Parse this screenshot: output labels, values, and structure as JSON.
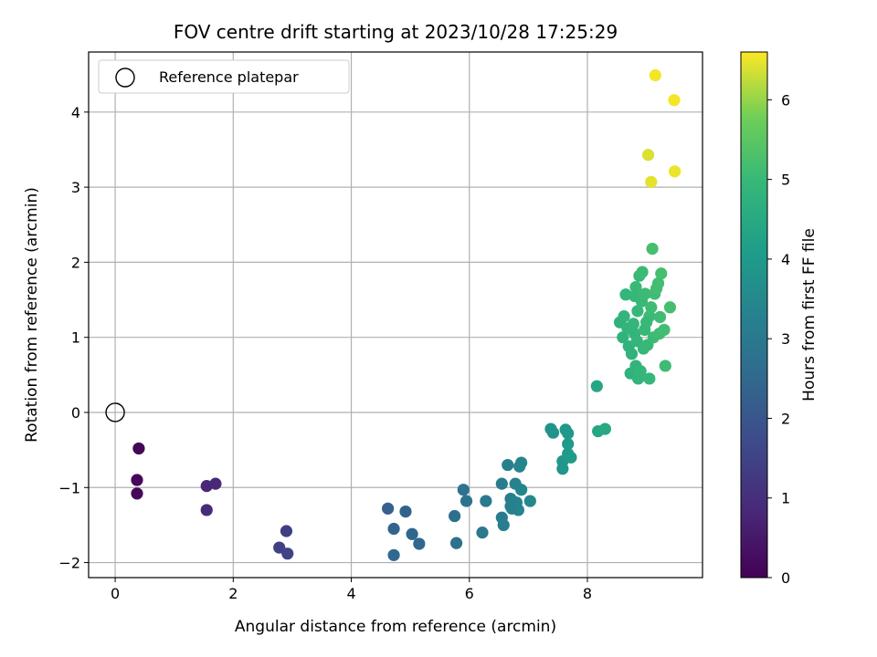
{
  "chart_data": {
    "type": "scatter",
    "title": "FOV centre drift starting at 2023/10/28 17:25:29",
    "xlabel": "Angular distance from reference (arcmin)",
    "ylabel": "Rotation from reference (arcmin)",
    "xlim": [
      -0.45,
      9.95
    ],
    "ylim": [
      -2.2,
      4.8
    ],
    "xticks": [
      0,
      2,
      4,
      6,
      8
    ],
    "yticks": [
      -2,
      -1,
      0,
      1,
      2,
      3,
      4
    ],
    "xtick_labels": [
      "0",
      "2",
      "4",
      "6",
      "8"
    ],
    "ytick_labels": [
      "−2",
      "−1",
      "0",
      "1",
      "2",
      "3",
      "4"
    ],
    "grid": true,
    "legend": {
      "position": "top-left",
      "entries": [
        {
          "label": "Reference platepar",
          "marker": "open-circle"
        }
      ]
    },
    "reference_point": {
      "x": 0,
      "y": 0
    },
    "colorbar": {
      "label": "Hours from first FF file",
      "colormap": "viridis",
      "range": [
        0,
        6.6
      ],
      "ticks": [
        0,
        1,
        2,
        3,
        4,
        5,
        6
      ],
      "tick_labels": [
        "0",
        "1",
        "2",
        "3",
        "4",
        "5",
        "6"
      ]
    },
    "points": [
      {
        "x": 0.4,
        "y": -0.48,
        "c": 0.1
      },
      {
        "x": 0.37,
        "y": -0.9,
        "c": 0.15
      },
      {
        "x": 0.37,
        "y": -1.08,
        "c": 0.18
      },
      {
        "x": 1.55,
        "y": -0.98,
        "c": 0.8
      },
      {
        "x": 1.7,
        "y": -0.95,
        "c": 0.85
      },
      {
        "x": 1.55,
        "y": -1.3,
        "c": 0.9
      },
      {
        "x": 2.9,
        "y": -1.58,
        "c": 1.4
      },
      {
        "x": 2.78,
        "y": -1.8,
        "c": 1.45
      },
      {
        "x": 2.92,
        "y": -1.88,
        "c": 1.5
      },
      {
        "x": 4.62,
        "y": -1.28,
        "c": 2.3
      },
      {
        "x": 4.92,
        "y": -1.32,
        "c": 2.35
      },
      {
        "x": 4.72,
        "y": -1.55,
        "c": 2.4
      },
      {
        "x": 5.03,
        "y": -1.62,
        "c": 2.45
      },
      {
        "x": 5.15,
        "y": -1.75,
        "c": 2.45
      },
      {
        "x": 4.72,
        "y": -1.9,
        "c": 2.5
      },
      {
        "x": 5.75,
        "y": -1.38,
        "c": 2.7
      },
      {
        "x": 5.78,
        "y": -1.74,
        "c": 2.75
      },
      {
        "x": 5.9,
        "y": -1.03,
        "c": 2.8
      },
      {
        "x": 5.95,
        "y": -1.18,
        "c": 2.85
      },
      {
        "x": 6.22,
        "y": -1.6,
        "c": 3.0
      },
      {
        "x": 6.28,
        "y": -1.18,
        "c": 3.0
      },
      {
        "x": 6.55,
        "y": -0.95,
        "c": 3.1
      },
      {
        "x": 6.55,
        "y": -1.4,
        "c": 3.1
      },
      {
        "x": 6.58,
        "y": -1.5,
        "c": 3.15
      },
      {
        "x": 6.65,
        "y": -0.7,
        "c": 3.2
      },
      {
        "x": 6.7,
        "y": -1.15,
        "c": 3.2
      },
      {
        "x": 6.72,
        "y": -1.28,
        "c": 3.25
      },
      {
        "x": 6.78,
        "y": -0.95,
        "c": 3.3
      },
      {
        "x": 6.8,
        "y": -1.2,
        "c": 3.3
      },
      {
        "x": 6.83,
        "y": -1.3,
        "c": 3.35
      },
      {
        "x": 6.85,
        "y": -0.72,
        "c": 3.35
      },
      {
        "x": 6.88,
        "y": -0.67,
        "c": 3.4
      },
      {
        "x": 6.88,
        "y": -1.03,
        "c": 3.4
      },
      {
        "x": 7.03,
        "y": -1.18,
        "c": 3.5
      },
      {
        "x": 6.7,
        "y": -1.25,
        "c": 3.25
      },
      {
        "x": 7.38,
        "y": -0.22,
        "c": 3.8
      },
      {
        "x": 7.42,
        "y": -0.27,
        "c": 3.8
      },
      {
        "x": 7.58,
        "y": -0.65,
        "c": 3.9
      },
      {
        "x": 7.58,
        "y": -0.75,
        "c": 3.9
      },
      {
        "x": 7.63,
        "y": -0.23,
        "c": 3.95
      },
      {
        "x": 7.67,
        "y": -0.28,
        "c": 3.95
      },
      {
        "x": 7.67,
        "y": -0.42,
        "c": 4.0
      },
      {
        "x": 7.67,
        "y": -0.55,
        "c": 4.0
      },
      {
        "x": 7.72,
        "y": -0.6,
        "c": 4.05
      },
      {
        "x": 8.16,
        "y": 0.35,
        "c": 4.4
      },
      {
        "x": 8.18,
        "y": -0.25,
        "c": 4.4
      },
      {
        "x": 8.3,
        "y": -0.22,
        "c": 4.45
      },
      {
        "x": 8.55,
        "y": 1.2,
        "c": 4.8
      },
      {
        "x": 8.62,
        "y": 1.28,
        "c": 4.85
      },
      {
        "x": 8.65,
        "y": 1.57,
        "c": 4.9
      },
      {
        "x": 8.7,
        "y": 0.88,
        "c": 4.8
      },
      {
        "x": 8.73,
        "y": 0.52,
        "c": 4.75
      },
      {
        "x": 8.75,
        "y": 0.78,
        "c": 4.8
      },
      {
        "x": 8.78,
        "y": 1.18,
        "c": 4.9
      },
      {
        "x": 8.8,
        "y": 1.55,
        "c": 4.95
      },
      {
        "x": 8.8,
        "y": 1.05,
        "c": 4.85
      },
      {
        "x": 8.82,
        "y": 0.62,
        "c": 4.85
      },
      {
        "x": 8.82,
        "y": 1.67,
        "c": 5.0
      },
      {
        "x": 8.84,
        "y": 0.95,
        "c": 4.9
      },
      {
        "x": 8.85,
        "y": 1.35,
        "c": 4.95
      },
      {
        "x": 8.86,
        "y": 0.45,
        "c": 4.85
      },
      {
        "x": 8.88,
        "y": 1.82,
        "c": 5.0
      },
      {
        "x": 8.9,
        "y": 0.55,
        "c": 4.9
      },
      {
        "x": 8.92,
        "y": 1.48,
        "c": 5.0
      },
      {
        "x": 8.93,
        "y": 1.87,
        "c": 5.05
      },
      {
        "x": 8.95,
        "y": 0.85,
        "c": 4.95
      },
      {
        "x": 8.97,
        "y": 1.1,
        "c": 5.0
      },
      {
        "x": 8.98,
        "y": 1.58,
        "c": 5.05
      },
      {
        "x": 9.02,
        "y": 0.9,
        "c": 5.0
      },
      {
        "x": 9.05,
        "y": 1.28,
        "c": 5.05
      },
      {
        "x": 9.05,
        "y": 0.45,
        "c": 4.95
      },
      {
        "x": 9.08,
        "y": 1.4,
        "c": 5.1
      },
      {
        "x": 9.1,
        "y": 2.18,
        "c": 5.2
      },
      {
        "x": 9.12,
        "y": 1.0,
        "c": 5.05
      },
      {
        "x": 9.14,
        "y": 1.58,
        "c": 5.1
      },
      {
        "x": 9.17,
        "y": 1.65,
        "c": 5.15
      },
      {
        "x": 9.2,
        "y": 1.72,
        "c": 5.15
      },
      {
        "x": 9.22,
        "y": 1.05,
        "c": 5.1
      },
      {
        "x": 9.23,
        "y": 1.27,
        "c": 5.1
      },
      {
        "x": 9.25,
        "y": 1.85,
        "c": 5.2
      },
      {
        "x": 9.3,
        "y": 1.1,
        "c": 5.15
      },
      {
        "x": 9.32,
        "y": 0.62,
        "c": 5.1
      },
      {
        "x": 9.4,
        "y": 1.4,
        "c": 5.2
      },
      {
        "x": 8.6,
        "y": 1.0,
        "c": 4.8
      },
      {
        "x": 8.68,
        "y": 1.12,
        "c": 4.85
      },
      {
        "x": 9.0,
        "y": 1.2,
        "c": 5.0
      },
      {
        "x": 9.03,
        "y": 3.43,
        "c": 6.4
      },
      {
        "x": 9.08,
        "y": 3.07,
        "c": 6.45
      },
      {
        "x": 9.15,
        "y": 4.49,
        "c": 6.55
      },
      {
        "x": 9.47,
        "y": 4.16,
        "c": 6.55
      },
      {
        "x": 9.48,
        "y": 3.21,
        "c": 6.5
      }
    ]
  }
}
